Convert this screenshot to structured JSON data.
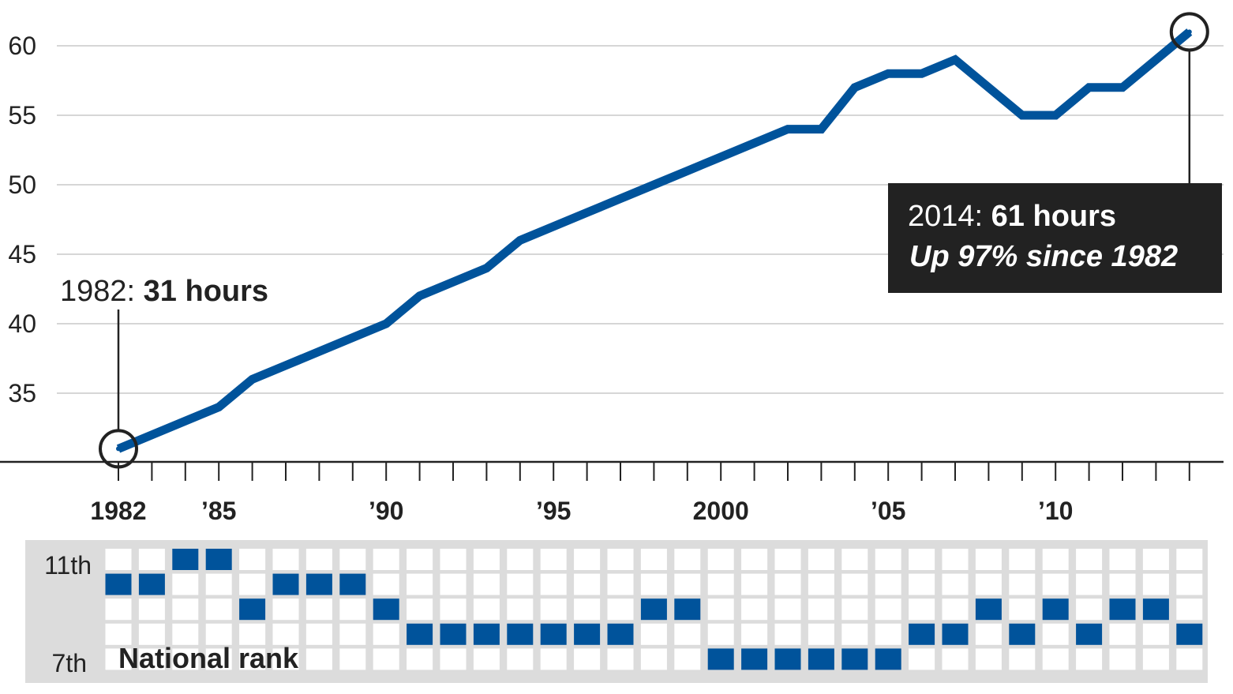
{
  "chart_data": [
    {
      "type": "line",
      "x": [
        1982,
        1983,
        1984,
        1985,
        1986,
        1987,
        1988,
        1989,
        1990,
        1991,
        1992,
        1993,
        1994,
        1995,
        1996,
        1997,
        1998,
        1999,
        2000,
        2001,
        2002,
        2003,
        2004,
        2005,
        2006,
        2007,
        2008,
        2009,
        2010,
        2011,
        2012,
        2013,
        2014
      ],
      "series": [
        {
          "values": [
            31,
            32,
            33,
            34,
            36,
            37,
            38,
            39,
            40,
            42,
            43,
            44,
            46,
            47,
            48,
            49,
            50,
            51,
            52,
            53,
            54,
            54,
            57,
            58,
            58,
            59,
            57,
            55,
            55,
            57,
            57,
            59,
            61
          ],
          "color": "#00539b"
        }
      ],
      "yticks": [
        35,
        40,
        45,
        50,
        55,
        60
      ],
      "ylim": [
        30,
        62
      ],
      "xlim": [
        1982,
        2014
      ],
      "xtick_labels": [
        {
          "year": 1982,
          "label": "1982"
        },
        {
          "year": 1985,
          "label": "’85"
        },
        {
          "year": 1990,
          "label": "’90"
        },
        {
          "year": 1995,
          "label": "’95"
        },
        {
          "year": 2000,
          "label": "2000"
        },
        {
          "year": 2005,
          "label": "’05"
        },
        {
          "year": 2010,
          "label": "’10"
        }
      ],
      "grid": true,
      "annotations": {
        "start": {
          "year": 1982,
          "value": 31,
          "prefix": "1982: ",
          "bold": "31 hours"
        },
        "end": {
          "year": 2014,
          "value": 61,
          "prefix": "2014: ",
          "bold": "61 hours",
          "line2": "Up 97% since 1982"
        }
      }
    },
    {
      "type": "heatmap",
      "title": "National rank",
      "row_labels": [
        "11th",
        "",
        "",
        "",
        "7th"
      ],
      "ranks_by_year": [
        10,
        10,
        11,
        11,
        9,
        10,
        10,
        10,
        9,
        8,
        8,
        8,
        8,
        8,
        8,
        8,
        9,
        9,
        7,
        7,
        7,
        7,
        7,
        7,
        8,
        8,
        9,
        8,
        9,
        8,
        9,
        9,
        8
      ],
      "color": "#00539b"
    }
  ]
}
